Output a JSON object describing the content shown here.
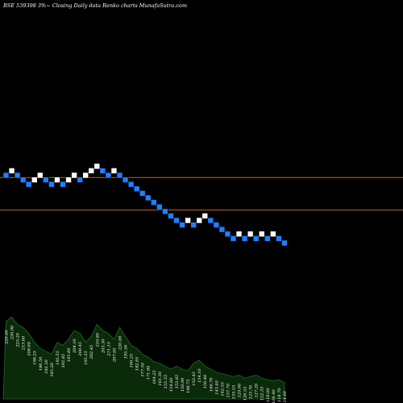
{
  "page_title": "BSE 539398  3%~  Closing Daily data  Renko  charts MunafaSutra.com",
  "colors": {
    "background": "#000000",
    "brick_up": "#ffffff",
    "brick_down": "#1f7fff",
    "support_line": "#c8651b",
    "volume_fill": "#0a2a0a",
    "volume_stroke": "#1f6b1f",
    "text": "#ffffff"
  },
  "chart_data": {
    "type": "renko",
    "title": "BSE 539398  3%~  Closing Daily data  Renko  charts MunafaSutra.com",
    "brick_size_pct": 3,
    "bricks": [
      {
        "dir": "down",
        "level": 0
      },
      {
        "dir": "up",
        "level": 1
      },
      {
        "dir": "down",
        "level": 0
      },
      {
        "dir": "down",
        "level": -1
      },
      {
        "dir": "down",
        "level": -2
      },
      {
        "dir": "up",
        "level": -1
      },
      {
        "dir": "up",
        "level": 0
      },
      {
        "dir": "down",
        "level": -1
      },
      {
        "dir": "down",
        "level": -2
      },
      {
        "dir": "up",
        "level": -1
      },
      {
        "dir": "down",
        "level": -2
      },
      {
        "dir": "up",
        "level": -1
      },
      {
        "dir": "up",
        "level": 0
      },
      {
        "dir": "down",
        "level": -1
      },
      {
        "dir": "up",
        "level": 0
      },
      {
        "dir": "up",
        "level": 1
      },
      {
        "dir": "up",
        "level": 2
      },
      {
        "dir": "down",
        "level": 1
      },
      {
        "dir": "down",
        "level": 0
      },
      {
        "dir": "up",
        "level": 1
      },
      {
        "dir": "down",
        "level": 0
      },
      {
        "dir": "down",
        "level": -1
      },
      {
        "dir": "down",
        "level": -2
      },
      {
        "dir": "down",
        "level": -3
      },
      {
        "dir": "down",
        "level": -4
      },
      {
        "dir": "down",
        "level": -5
      },
      {
        "dir": "down",
        "level": -6
      },
      {
        "dir": "down",
        "level": -7
      },
      {
        "dir": "down",
        "level": -8
      },
      {
        "dir": "down",
        "level": -9
      },
      {
        "dir": "down",
        "level": -10
      },
      {
        "dir": "down",
        "level": -11
      },
      {
        "dir": "up",
        "level": -10
      },
      {
        "dir": "down",
        "level": -11
      },
      {
        "dir": "up",
        "level": -10
      },
      {
        "dir": "up",
        "level": -9
      },
      {
        "dir": "down",
        "level": -10
      },
      {
        "dir": "down",
        "level": -11
      },
      {
        "dir": "down",
        "level": -12
      },
      {
        "dir": "down",
        "level": -13
      },
      {
        "dir": "down",
        "level": -14
      },
      {
        "dir": "up",
        "level": -13
      },
      {
        "dir": "down",
        "level": -14
      },
      {
        "dir": "up",
        "level": -13
      },
      {
        "dir": "down",
        "level": -14
      },
      {
        "dir": "up",
        "level": -13
      },
      {
        "dir": "down",
        "level": -14
      },
      {
        "dir": "up",
        "level": -13
      },
      {
        "dir": "down",
        "level": -14
      },
      {
        "dir": "down",
        "level": -15
      }
    ],
    "support_lines": [
      {
        "name": "upper",
        "level": -0.5
      },
      {
        "name": "lower",
        "level": -7.7
      }
    ],
    "volume_labels": [
      "226.60",
      "230.90",
      "225.20",
      "213.60",
      "208.60",
      "198.25",
      "186.50",
      "192.50",
      "185.20",
      "195.55",
      "192.85",
      "195.60",
      "204.10",
      "200.45",
      "195.35",
      "202.45",
      "210.80",
      "205.30",
      "211.15",
      "207.00",
      "220.00",
      "195.50",
      "190.25",
      "182.85",
      "177.50",
      "171.90",
      "164.25",
      "161.30",
      "155.55",
      "154.60",
      "153.85",
      "150.90",
      "148.75",
      "152.45",
      "154.10",
      "150.40",
      "146.70",
      "143.40",
      "142.55",
      "137.70",
      "133.55",
      "129.00",
      "126.55",
      "125.70",
      "127.20",
      "122.35",
      "118.00",
      "116.40",
      "118.70",
      "114.60"
    ],
    "volume_values": [
      52,
      55,
      50,
      48,
      44,
      38,
      34,
      32,
      30,
      38,
      36,
      40,
      46,
      44,
      38,
      42,
      50,
      46,
      44,
      40,
      48,
      42,
      36,
      34,
      30,
      28,
      25,
      24,
      22,
      20,
      22,
      20,
      19,
      24,
      26,
      22,
      20,
      18,
      17,
      16,
      15,
      16,
      14,
      15,
      16,
      14,
      13,
      12,
      13,
      11
    ]
  }
}
